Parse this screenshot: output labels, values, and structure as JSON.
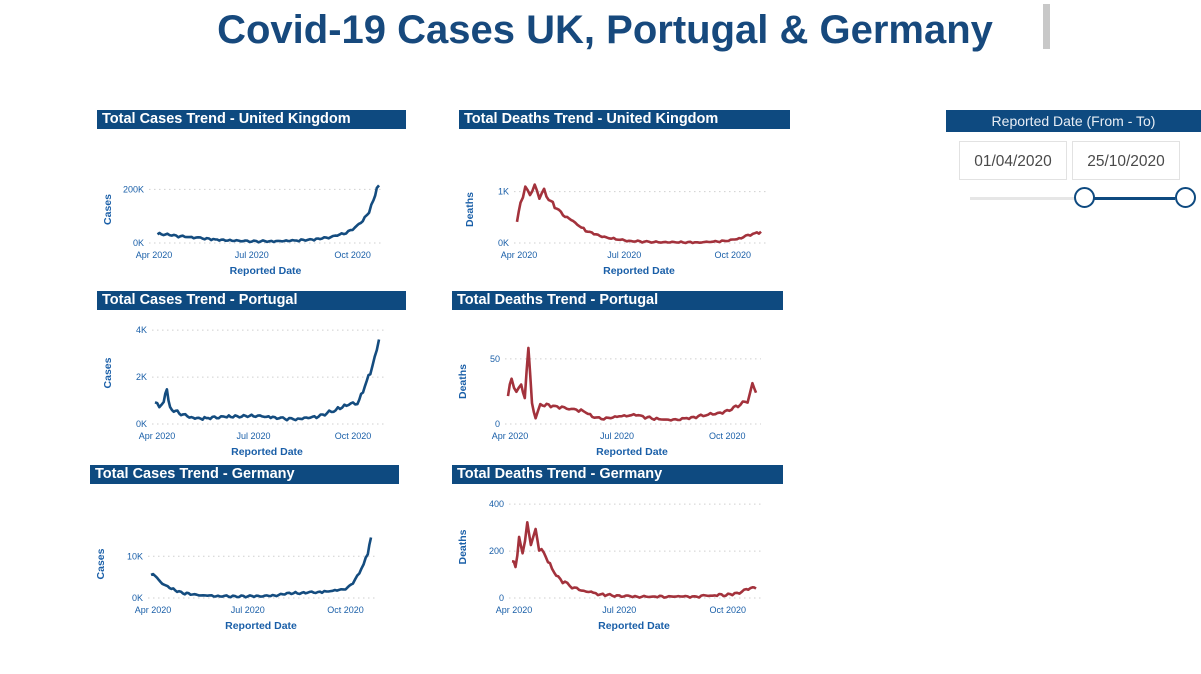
{
  "title": "Covid-19 Cases UK, Portugal & Germany",
  "slicer": {
    "header": "Reported Date (From - To)",
    "from": "01/04/2020",
    "to": "25/10/2020",
    "range_start_fraction": 0.31,
    "range_end_fraction": 1.0
  },
  "colors": {
    "cases": "#144c7f",
    "deaths": "#a3323c",
    "header": "#0e4a80",
    "title": "#17497d"
  },
  "chart_data": [
    {
      "id": "uk-cases",
      "type": "line",
      "title": "Total Cases Trend - United Kingdom",
      "xlabel": "Reported Date",
      "ylabel": "Cases",
      "x_ticks": [
        "Apr 2020",
        "Jul 2020",
        "Oct 2020"
      ],
      "y_ticks": [
        "0K",
        "200K"
      ],
      "ylim": [
        0,
        230000
      ],
      "x_range": [
        "2020-04-01",
        "2020-10-25"
      ],
      "series": [
        {
          "color": "#144c7f",
          "points": [
            [
              "2020-04-06",
              34000
            ],
            [
              "2020-04-15",
              31000
            ],
            [
              "2020-04-25",
              26000
            ],
            [
              "2020-05-05",
              22000
            ],
            [
              "2020-05-15",
              18000
            ],
            [
              "2020-05-25",
              14000
            ],
            [
              "2020-06-05",
              11000
            ],
            [
              "2020-06-15",
              9000
            ],
            [
              "2020-06-25",
              7000
            ],
            [
              "2020-07-05",
              6000
            ],
            [
              "2020-07-15",
              6000
            ],
            [
              "2020-07-25",
              7000
            ],
            [
              "2020-08-05",
              8000
            ],
            [
              "2020-08-15",
              10000
            ],
            [
              "2020-08-25",
              13000
            ],
            [
              "2020-09-05",
              18000
            ],
            [
              "2020-09-15",
              26000
            ],
            [
              "2020-09-25",
              38000
            ],
            [
              "2020-10-05",
              62000
            ],
            [
              "2020-10-12",
              90000
            ],
            [
              "2020-10-16",
              120000
            ],
            [
              "2020-10-20",
              160000
            ],
            [
              "2020-10-23",
              205000
            ],
            [
              "2020-10-25",
              215000
            ]
          ]
        }
      ]
    },
    {
      "id": "uk-deaths",
      "type": "line",
      "title": "Total Deaths Trend - United Kingdom",
      "xlabel": "Reported Date",
      "ylabel": "Deaths",
      "x_ticks": [
        "Apr 2020",
        "Jul 2020",
        "Oct 2020"
      ],
      "y_ticks": [
        "0K",
        "1K"
      ],
      "ylim": [
        0,
        1200
      ],
      "x_range": [
        "2020-04-01",
        "2020-10-25"
      ],
      "series": [
        {
          "color": "#a3323c",
          "points": [
            [
              "2020-04-01",
              430
            ],
            [
              "2020-04-04",
              800
            ],
            [
              "2020-04-08",
              1050
            ],
            [
              "2020-04-12",
              950
            ],
            [
              "2020-04-16",
              1100
            ],
            [
              "2020-04-20",
              900
            ],
            [
              "2020-04-24",
              1000
            ],
            [
              "2020-04-28",
              850
            ],
            [
              "2020-05-03",
              700
            ],
            [
              "2020-05-10",
              560
            ],
            [
              "2020-05-17",
              450
            ],
            [
              "2020-05-24",
              330
            ],
            [
              "2020-05-31",
              230
            ],
            [
              "2020-06-07",
              160
            ],
            [
              "2020-06-14",
              120
            ],
            [
              "2020-06-24",
              70
            ],
            [
              "2020-07-05",
              40
            ],
            [
              "2020-07-20",
              20
            ],
            [
              "2020-08-05",
              12
            ],
            [
              "2020-08-20",
              10
            ],
            [
              "2020-09-05",
              12
            ],
            [
              "2020-09-20",
              30
            ],
            [
              "2020-10-01",
              60
            ],
            [
              "2020-10-10",
              110
            ],
            [
              "2020-10-18",
              170
            ],
            [
              "2020-10-25",
              220
            ]
          ]
        }
      ]
    },
    {
      "id": "pt-cases",
      "type": "line",
      "title": "Total Cases Trend - Portugal",
      "xlabel": "Reported Date",
      "ylabel": "Cases",
      "x_ticks": [
        "Apr 2020",
        "Jul 2020",
        "Oct 2020"
      ],
      "y_ticks": [
        "0K",
        "2K",
        "4K"
      ],
      "ylim": [
        0,
        4000
      ],
      "x_range": [
        "2020-04-01",
        "2020-10-25"
      ],
      "series": [
        {
          "color": "#144c7f",
          "points": [
            [
              "2020-04-01",
              950
            ],
            [
              "2020-04-05",
              750
            ],
            [
              "2020-04-09",
              900
            ],
            [
              "2020-04-12",
              1500
            ],
            [
              "2020-04-15",
              650
            ],
            [
              "2020-04-20",
              550
            ],
            [
              "2020-04-25",
              450
            ],
            [
              "2020-05-01",
              350
            ],
            [
              "2020-05-08",
              250
            ],
            [
              "2020-05-15",
              250
            ],
            [
              "2020-05-22",
              250
            ],
            [
              "2020-06-01",
              300
            ],
            [
              "2020-06-10",
              320
            ],
            [
              "2020-06-20",
              350
            ],
            [
              "2020-07-01",
              350
            ],
            [
              "2020-07-15",
              300
            ],
            [
              "2020-08-01",
              200
            ],
            [
              "2020-08-15",
              220
            ],
            [
              "2020-09-01",
              350
            ],
            [
              "2020-09-15",
              600
            ],
            [
              "2020-09-25",
              800
            ],
            [
              "2020-10-05",
              900
            ],
            [
              "2020-10-12",
              1600
            ],
            [
              "2020-10-17",
              2200
            ],
            [
              "2020-10-21",
              2800
            ],
            [
              "2020-10-25",
              3600
            ]
          ]
        }
      ]
    },
    {
      "id": "pt-deaths",
      "type": "line",
      "title": "Total Deaths Trend - Portugal",
      "xlabel": "Reported Date",
      "ylabel": "Deaths",
      "x_ticks": [
        "Apr 2020",
        "Jul 2020",
        "Oct 2020"
      ],
      "y_ticks": [
        "0",
        "50"
      ],
      "ylim": [
        0,
        60
      ],
      "x_range": [
        "2020-04-01",
        "2020-10-25"
      ],
      "series": [
        {
          "color": "#a3323c",
          "points": [
            [
              "2020-04-01",
              22
            ],
            [
              "2020-04-04",
              35
            ],
            [
              "2020-04-08",
              25
            ],
            [
              "2020-04-12",
              30
            ],
            [
              "2020-04-15",
              20
            ],
            [
              "2020-04-18",
              60
            ],
            [
              "2020-04-21",
              15
            ],
            [
              "2020-04-24",
              5
            ],
            [
              "2020-04-28",
              15
            ],
            [
              "2020-05-05",
              14
            ],
            [
              "2020-05-12",
              13
            ],
            [
              "2020-05-20",
              12
            ],
            [
              "2020-05-28",
              11
            ],
            [
              "2020-06-05",
              9
            ],
            [
              "2020-06-12",
              5
            ],
            [
              "2020-06-22",
              4
            ],
            [
              "2020-07-01",
              6
            ],
            [
              "2020-07-15",
              7
            ],
            [
              "2020-08-01",
              4
            ],
            [
              "2020-08-15",
              3
            ],
            [
              "2020-09-01",
              5
            ],
            [
              "2020-09-15",
              7
            ],
            [
              "2020-10-01",
              10
            ],
            [
              "2020-10-10",
              14
            ],
            [
              "2020-10-18",
              18
            ],
            [
              "2020-10-22",
              30
            ],
            [
              "2020-10-25",
              24
            ]
          ]
        }
      ]
    },
    {
      "id": "de-cases",
      "type": "line",
      "title": "Total Cases Trend - Germany",
      "xlabel": "Reported Date",
      "ylabel": "Cases",
      "x_ticks": [
        "Apr 2020",
        "Jul 2020",
        "Oct 2020"
      ],
      "y_ticks": [
        "0K",
        "10K"
      ],
      "ylim": [
        0,
        15000
      ],
      "x_range": [
        "2020-04-01",
        "2020-10-25"
      ],
      "series": [
        {
          "color": "#144c7f",
          "points": [
            [
              "2020-04-01",
              5800
            ],
            [
              "2020-04-05",
              5500
            ],
            [
              "2020-04-10",
              3800
            ],
            [
              "2020-04-15",
              2800
            ],
            [
              "2020-04-22",
              2000
            ],
            [
              "2020-05-01",
              1200
            ],
            [
              "2020-05-10",
              800
            ],
            [
              "2020-05-20",
              600
            ],
            [
              "2020-06-01",
              400
            ],
            [
              "2020-06-15",
              400
            ],
            [
              "2020-07-01",
              400
            ],
            [
              "2020-07-15",
              450
            ],
            [
              "2020-08-01",
              800
            ],
            [
              "2020-08-15",
              1200
            ],
            [
              "2020-09-01",
              1300
            ],
            [
              "2020-09-15",
              1600
            ],
            [
              "2020-10-01",
              2200
            ],
            [
              "2020-10-08",
              3500
            ],
            [
              "2020-10-14",
              6000
            ],
            [
              "2020-10-18",
              8000
            ],
            [
              "2020-10-22",
              11000
            ],
            [
              "2020-10-25",
              14500
            ]
          ]
        }
      ]
    },
    {
      "id": "de-deaths",
      "type": "line",
      "title": "Total Deaths Trend - Germany",
      "xlabel": "Reported Date",
      "ylabel": "Deaths",
      "x_ticks": [
        "Apr 2020",
        "Jul 2020",
        "Oct 2020"
      ],
      "y_ticks": [
        "0",
        "200",
        "400"
      ],
      "ylim": [
        0,
        400
      ],
      "x_range": [
        "2020-04-01",
        "2020-10-25"
      ],
      "series": [
        {
          "color": "#a3323c",
          "points": [
            [
              "2020-04-01",
              150
            ],
            [
              "2020-04-04",
              140
            ],
            [
              "2020-04-07",
              250
            ],
            [
              "2020-04-10",
              200
            ],
            [
              "2020-04-14",
              310
            ],
            [
              "2020-04-17",
              230
            ],
            [
              "2020-04-21",
              280
            ],
            [
              "2020-04-24",
              210
            ],
            [
              "2020-04-28",
              190
            ],
            [
              "2020-05-05",
              120
            ],
            [
              "2020-05-12",
              80
            ],
            [
              "2020-05-20",
              50
            ],
            [
              "2020-06-01",
              30
            ],
            [
              "2020-06-15",
              15
            ],
            [
              "2020-07-01",
              8
            ],
            [
              "2020-07-20",
              5
            ],
            [
              "2020-08-10",
              6
            ],
            [
              "2020-09-01",
              7
            ],
            [
              "2020-09-20",
              10
            ],
            [
              "2020-10-05",
              15
            ],
            [
              "2020-10-15",
              30
            ],
            [
              "2020-10-22",
              45
            ],
            [
              "2020-10-25",
              40
            ]
          ]
        }
      ]
    }
  ]
}
